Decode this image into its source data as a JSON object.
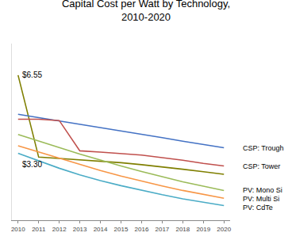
{
  "chart_data": {
    "type": "line",
    "title": "Capital Cost per Watt by Technology,\n2010-2020",
    "x": [
      2010,
      2011,
      2012,
      2013,
      2014,
      2015,
      2016,
      2017,
      2018,
      2019,
      2020
    ],
    "series": [
      {
        "color": "#7F7F00",
        "values": [
          6.55,
          3.3,
          3.25,
          3.2,
          3.15,
          3.08,
          3.0,
          2.92,
          2.82,
          2.72,
          2.62
        ]
      },
      {
        "name": "CSP: Trough",
        "color": "#4472C4",
        "values": [
          5.0,
          4.87,
          4.73,
          4.6,
          4.47,
          4.33,
          4.2,
          4.07,
          3.93,
          3.8,
          3.67
        ]
      },
      {
        "name": "CSP: Tower",
        "color": "#C0504D",
        "values": [
          4.8,
          4.8,
          4.75,
          3.55,
          3.5,
          3.45,
          3.38,
          3.28,
          3.18,
          3.05,
          2.95
        ]
      },
      {
        "name": "PV: Mono Si",
        "color": "#9BBB59",
        "values": [
          4.2,
          3.95,
          3.68,
          3.42,
          3.18,
          2.95,
          2.73,
          2.52,
          2.32,
          2.15,
          1.98
        ]
      },
      {
        "name": "PV: Multi Si",
        "color": "#F79646",
        "values": [
          3.75,
          3.5,
          3.25,
          3.0,
          2.77,
          2.55,
          2.35,
          2.16,
          1.98,
          1.82,
          1.67
        ]
      },
      {
        "name": "PV: CdTe",
        "color": "#4BACC6",
        "values": [
          3.45,
          3.15,
          2.86,
          2.6,
          2.37,
          2.17,
          1.98,
          1.81,
          1.65,
          1.51,
          1.38
        ]
      }
    ],
    "annotations": [
      {
        "text": "$6.55",
        "x": 2010,
        "y": 6.55
      },
      {
        "text": "$3.30",
        "x": 2010,
        "y": 3.3
      }
    ],
    "xlim": [
      2009.7,
      2020.3
    ],
    "xticks": [
      2010,
      2011,
      2012,
      2013,
      2014,
      2015,
      2016,
      2017,
      2018,
      2019,
      2020
    ],
    "ylim": [
      0.8,
      7.8
    ],
    "grid": false,
    "tick_labels": "x"
  }
}
